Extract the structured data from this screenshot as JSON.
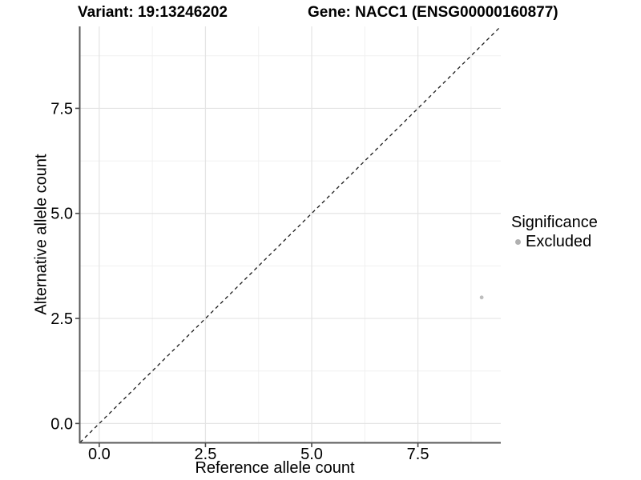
{
  "titles": {
    "variant": "Variant: 19:13246202",
    "gene": "Gene: NACC1 (ENSG00000160877)"
  },
  "legend": {
    "title": "Significance",
    "items": [
      {
        "label": "Excluded",
        "color": "#b0b0b0"
      }
    ]
  },
  "chart_data": {
    "type": "scatter",
    "title": "Variant: 19:13246202  Gene: NACC1 (ENSG00000160877)",
    "xlabel": "Reference allele count",
    "ylabel": "Alternative allele count",
    "points": [
      {
        "x": 9,
        "y": 3,
        "series": "Excluded"
      }
    ],
    "series_colors": {
      "Excluded": "#bebebe"
    },
    "reference_line": {
      "kind": "identity",
      "slope": 1,
      "intercept": 0,
      "linetype": "dashed",
      "color": "#1a1a1a"
    },
    "xlim": [
      -0.45,
      9.45
    ],
    "ylim": [
      -0.45,
      9.45
    ],
    "x_major_ticks": [
      0,
      2.5,
      5,
      7.5
    ],
    "y_major_ticks": [
      0,
      2.5,
      5,
      7.5
    ],
    "x_tick_labels": [
      "0.0",
      "2.5",
      "5.0",
      "7.5"
    ],
    "y_tick_labels": [
      "0.0",
      "2.5",
      "5.0",
      "7.5"
    ],
    "x_minor_ticks": [
      1.25,
      3.75,
      6.25,
      8.75
    ],
    "y_minor_ticks": [
      1.25,
      3.75,
      6.25,
      8.75
    ],
    "grid": "major+minor",
    "legend_position": "right"
  },
  "colors": {
    "grid_major": "#e4e4e4",
    "grid_minor": "#f0f0f0",
    "axis_line": "#595959",
    "tick_mark": "#4a4a4a",
    "text": "#000000"
  }
}
